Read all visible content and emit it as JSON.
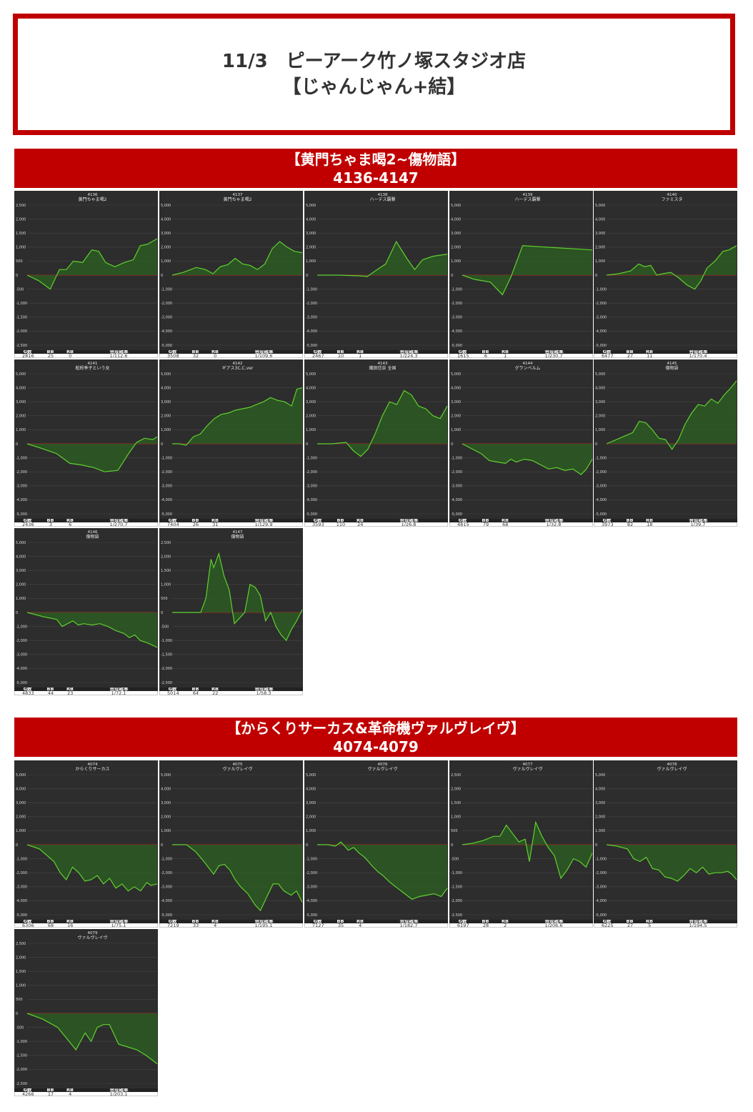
{
  "header": {
    "line1": "11/3　ピーアーク竹ノ塚スタジオ店",
    "line2": "【じゃんじゃん+結】"
  },
  "sections": [
    {
      "title": "【黄門ちゃま喝2~傷物語】",
      "range": "4136-4147"
    },
    {
      "title": "【からくりサーカス&革命機ヴァルヴレイヴ】",
      "range": "4074-4079"
    }
  ],
  "table_headers": [
    "G数",
    "BB",
    "RB",
    "合成確率"
  ],
  "colors": {
    "line": "#5fd130",
    "fill": "#2d5a22",
    "zero": "#cc2222",
    "bg": "#2d2d2d",
    "accent": "#c00000"
  },
  "chart_data": [
    {
      "type": "area",
      "number": "4136",
      "name": "黄門ちゃま喝2",
      "ylim": [
        -2500,
        2500
      ],
      "yticks": [
        2500,
        2000,
        1500,
        1000,
        500,
        0,
        -500,
        -1000,
        -1500,
        -2000,
        -2500
      ],
      "x": [
        0,
        250,
        500,
        700,
        850,
        1000,
        1200,
        1400,
        1550,
        1700,
        1900,
        2100,
        2300,
        2450,
        2600,
        2816
      ],
      "y": [
        0,
        -200,
        -500,
        200,
        200,
        500,
        450,
        900,
        850,
        450,
        300,
        450,
        550,
        1050,
        1100,
        1300
      ],
      "stats": {
        "games": "2816",
        "bb": "25",
        "rb": "0",
        "rate": "1/112.6"
      }
    },
    {
      "type": "area",
      "number": "4137",
      "name": "黄門ちゃま喝2",
      "ylim": [
        -5000,
        5000
      ],
      "yticks": [
        5000,
        4000,
        3000,
        2000,
        1000,
        0,
        -1000,
        -2000,
        -3000,
        -4000,
        -5000
      ],
      "x": [
        0,
        300,
        650,
        900,
        1100,
        1300,
        1500,
        1700,
        1900,
        2100,
        2300,
        2500,
        2700,
        2900,
        3100,
        3300,
        3508
      ],
      "y": [
        0,
        200,
        550,
        400,
        100,
        600,
        750,
        1200,
        800,
        700,
        400,
        800,
        1900,
        2400,
        2000,
        1700,
        1600
      ],
      "stats": {
        "games": "3508",
        "bb": "32",
        "rb": "0",
        "rate": "1/109.6"
      }
    },
    {
      "type": "area",
      "number": "4138",
      "name": "ハーデス覇撃",
      "ylim": [
        -5000,
        5000
      ],
      "yticks": [
        5000,
        4000,
        3000,
        2000,
        1000,
        0,
        -1000,
        -2000,
        -3000,
        -4000,
        -5000
      ],
      "x": [
        0,
        400,
        800,
        950,
        1100,
        1300,
        1500,
        1700,
        1850,
        2000,
        2200,
        2467
      ],
      "y": [
        0,
        0,
        -50,
        -100,
        300,
        800,
        2400,
        1200,
        400,
        1100,
        1350,
        1500
      ],
      "stats": {
        "games": "2467",
        "bb": "10",
        "rb": "1",
        "rate": "1/224.3"
      }
    },
    {
      "type": "area",
      "number": "4139",
      "name": "ハーデス覇撃",
      "ylim": [
        -5000,
        5000
      ],
      "yticks": [
        5000,
        4000,
        3000,
        2000,
        1000,
        0,
        -1000,
        -2000,
        -3000,
        -4000,
        -5000
      ],
      "x": [
        0,
        150,
        350,
        500,
        600,
        750,
        1615
      ],
      "y": [
        0,
        -300,
        -500,
        -1400,
        -200,
        2100,
        1800
      ],
      "stats": {
        "games": "1615",
        "bb": "6",
        "rb": "1",
        "rate": "1/230.7"
      }
    },
    {
      "type": "area",
      "number": "4140",
      "name": "ファミスタ",
      "ylim": [
        -5000,
        5000
      ],
      "yticks": [
        5000,
        4000,
        3000,
        2000,
        1000,
        0,
        -1000,
        -2000,
        -3000,
        -4000,
        -5000
      ],
      "x": [
        0,
        600,
        1200,
        1600,
        1900,
        2200,
        2500,
        2800,
        3200,
        3600,
        4000,
        4400,
        4700,
        5000,
        5400,
        5800,
        6100,
        6477
      ],
      "y": [
        0,
        100,
        300,
        800,
        600,
        700,
        0,
        100,
        200,
        -200,
        -700,
        -1000,
        -400,
        500,
        1000,
        1700,
        1800,
        2100
      ],
      "stats": {
        "games": "6477",
        "bb": "27",
        "rb": "11",
        "rate": "1/170.4"
      }
    },
    {
      "type": "area",
      "number": "4141",
      "name": "蚯蚓季子という女",
      "ylim": [
        -5000,
        5000
      ],
      "yticks": [
        5000,
        4000,
        3000,
        2000,
        1000,
        0,
        -1000,
        -2000,
        -3000,
        -4000,
        -5000
      ],
      "x": [
        0,
        250,
        550,
        800,
        1000,
        1250,
        1450,
        1700,
        1900,
        2050,
        2200,
        2350,
        2436
      ],
      "y": [
        0,
        -300,
        -700,
        -1400,
        -1500,
        -1700,
        -2000,
        -1900,
        -700,
        100,
        400,
        300,
        500
      ],
      "stats": {
        "games": "2436",
        "bb": "3",
        "rb": "6",
        "rate": "1/270.7"
      }
    },
    {
      "type": "area",
      "number": "4142",
      "name": "ギアス3C.C.ver",
      "ylim": [
        -5000,
        5000
      ],
      "yticks": [
        5000,
        4000,
        3000,
        2000,
        1000,
        0,
        -1000,
        -2000,
        -3000,
        -4000,
        -5000
      ],
      "x": [
        0,
        400,
        800,
        1200,
        1600,
        2000,
        2400,
        2800,
        3200,
        3600,
        4000,
        4400,
        4800,
        5200,
        5600,
        6000,
        6400,
        6800,
        7100,
        7404
      ],
      "y": [
        0,
        0,
        -100,
        500,
        700,
        1300,
        1800,
        2100,
        2200,
        2400,
        2500,
        2600,
        2800,
        3000,
        3300,
        3100,
        3000,
        2700,
        3900,
        4000
      ],
      "stats": {
        "games": "7404",
        "bb": "26",
        "rb": "31",
        "rate": "1/129.9"
      }
    },
    {
      "type": "area",
      "number": "4143",
      "name": "織田信奈 全国",
      "ylim": [
        -5000,
        5000
      ],
      "yticks": [
        5000,
        4000,
        3000,
        2000,
        1000,
        0,
        -1000,
        -2000,
        -3000,
        -4000,
        -5000
      ],
      "x": [
        0,
        400,
        800,
        1000,
        1200,
        1400,
        1600,
        1800,
        2000,
        2200,
        2400,
        2600,
        2800,
        3000,
        3200,
        3400,
        3593
      ],
      "y": [
        0,
        0,
        100,
        -500,
        -900,
        -400,
        700,
        2000,
        3000,
        2800,
        3800,
        3500,
        2700,
        2500,
        2000,
        1800,
        2700
      ],
      "stats": {
        "games": "3593",
        "bb": "110",
        "rb": "24",
        "rate": "1/26.8"
      }
    },
    {
      "type": "area",
      "number": "4144",
      "name": "グランベルム",
      "ylim": [
        -5000,
        5000
      ],
      "yticks": [
        5000,
        4000,
        3000,
        2000,
        1000,
        0,
        -1000,
        -2000,
        -3000,
        -4000,
        -5000
      ],
      "x": [
        0,
        300,
        700,
        1000,
        1300,
        1600,
        1800,
        2000,
        2300,
        2600,
        2900,
        3200,
        3500,
        3800,
        4100,
        4400,
        4600,
        4815
      ],
      "y": [
        0,
        -300,
        -700,
        -1200,
        -1300,
        -1400,
        -1100,
        -1300,
        -1100,
        -1200,
        -1500,
        -1800,
        -1700,
        -1900,
        -1800,
        -2200,
        -1800,
        -1100
      ],
      "stats": {
        "games": "4815",
        "bb": "79",
        "rb": "68",
        "rate": "1/32.8"
      }
    },
    {
      "type": "area",
      "number": "4145",
      "name": "傷物語",
      "ylim": [
        -5000,
        5000
      ],
      "yticks": [
        5000,
        4000,
        3000,
        2000,
        1000,
        0,
        -1000,
        -2000,
        -3000,
        -4000,
        -5000
      ],
      "x": [
        0,
        400,
        800,
        1000,
        1200,
        1400,
        1600,
        1800,
        2000,
        2200,
        2400,
        2600,
        2800,
        3000,
        3200,
        3400,
        3600,
        3800,
        3973
      ],
      "y": [
        0,
        400,
        800,
        1600,
        1500,
        1000,
        400,
        300,
        -400,
        300,
        1400,
        2200,
        2800,
        2700,
        3200,
        2900,
        3500,
        4000,
        4500
      ],
      "stats": {
        "games": "3973",
        "bb": "82",
        "rb": "18",
        "rate": "1/39.7"
      }
    },
    {
      "type": "area",
      "number": "4146",
      "name": "傷物語",
      "ylim": [
        -5000,
        5000
      ],
      "yticks": [
        5000,
        4000,
        3000,
        2000,
        1000,
        0,
        -1000,
        -2000,
        -3000,
        -4000,
        -5000
      ],
      "x": [
        0,
        600,
        1100,
        1300,
        1500,
        1700,
        1900,
        2100,
        2400,
        2700,
        3000,
        3300,
        3600,
        3800,
        4000,
        4200,
        4500,
        4833
      ],
      "y": [
        0,
        -300,
        -500,
        -1000,
        -800,
        -600,
        -900,
        -800,
        -900,
        -800,
        -1000,
        -1300,
        -1500,
        -1800,
        -1600,
        -2000,
        -2200,
        -2500
      ],
      "stats": {
        "games": "4833",
        "bb": "44",
        "rb": "23",
        "rate": "1/72.1"
      }
    },
    {
      "type": "area",
      "number": "4147",
      "name": "傷物語",
      "ylim": [
        -2500,
        2500
      ],
      "yticks": [
        2500,
        2000,
        1500,
        1000,
        500,
        0,
        -500,
        -1000,
        -1500,
        -2000,
        -2500
      ],
      "x": [
        0,
        1100,
        1300,
        1500,
        1600,
        1800,
        2000,
        2200,
        2400,
        2600,
        2800,
        3000,
        3200,
        3400,
        3600,
        3800,
        4000,
        4200,
        4400,
        4600,
        4800,
        5014
      ],
      "y": [
        0,
        0,
        500,
        1900,
        1600,
        2100,
        1300,
        800,
        -400,
        -200,
        0,
        1000,
        900,
        600,
        -300,
        0,
        -500,
        -800,
        -1000,
        -600,
        -300,
        100
      ],
      "stats": {
        "games": "5014",
        "bb": "64",
        "rb": "22",
        "rate": "1/58.3"
      }
    },
    {
      "type": "area",
      "number": "4074",
      "name": "からくりサーカス",
      "ylim": [
        -5000,
        5000
      ],
      "yticks": [
        5000,
        4000,
        3000,
        2000,
        1000,
        0,
        -1000,
        -2000,
        -3000,
        -4000,
        -5000
      ],
      "x": [
        0,
        600,
        1300,
        1600,
        1900,
        2200,
        2500,
        2800,
        3100,
        3400,
        3700,
        4000,
        4300,
        4600,
        4900,
        5200,
        5500,
        5800,
        6000,
        6306
      ],
      "y": [
        0,
        -300,
        -1200,
        -2000,
        -2500,
        -1600,
        -2000,
        -2600,
        -2500,
        -2200,
        -2800,
        -2400,
        -3100,
        -2800,
        -3300,
        -3000,
        -3300,
        -2700,
        -2900,
        -2800
      ],
      "stats": {
        "games": "6306",
        "bb": "68",
        "rb": "16",
        "rate": "1/75.1"
      }
    },
    {
      "type": "area",
      "number": "4075",
      "name": "ヴァルヴレイヴ",
      "ylim": [
        -5000,
        5000
      ],
      "yticks": [
        5000,
        4000,
        3000,
        2000,
        1000,
        0,
        -1000,
        -2000,
        -3000,
        -4000,
        -5000
      ],
      "x": [
        0,
        800,
        1300,
        1700,
        2000,
        2300,
        2600,
        2900,
        3200,
        3500,
        3800,
        4200,
        4600,
        4900,
        5300,
        5600,
        5900,
        6200,
        6600,
        6900,
        7219
      ],
      "y": [
        0,
        0,
        -500,
        -1100,
        -1600,
        -2100,
        -1500,
        -1400,
        -1800,
        -2500,
        -3000,
        -3500,
        -4300,
        -4700,
        -3600,
        -2800,
        -2800,
        -3300,
        -3600,
        -3300,
        -4100
      ],
      "stats": {
        "games": "7219",
        "bb": "33",
        "rb": "4",
        "rate": "1/195.1"
      }
    },
    {
      "type": "area",
      "number": "4076",
      "name": "ヴァルヴレイヴ",
      "ylim": [
        -5000,
        5000
      ],
      "yticks": [
        5000,
        4000,
        3000,
        2000,
        1000,
        0,
        -1000,
        -2000,
        -3000,
        -4000,
        -5000
      ],
      "x": [
        0,
        600,
        1000,
        1300,
        1700,
        2000,
        2300,
        2600,
        3000,
        3300,
        3600,
        4000,
        4400,
        4800,
        5200,
        5600,
        6000,
        6400,
        6800,
        7127
      ],
      "y": [
        0,
        0,
        -100,
        200,
        -400,
        -200,
        -600,
        -900,
        -1500,
        -1900,
        -2200,
        -2700,
        -3100,
        -3500,
        -3900,
        -3700,
        -3600,
        -3500,
        -3700,
        -3100
      ],
      "stats": {
        "games": "7127",
        "bb": "35",
        "rb": "4",
        "rate": "1/182.7"
      }
    },
    {
      "type": "area",
      "number": "4077",
      "name": "ヴァルヴレイヴ",
      "ylim": [
        -2500,
        2500
      ],
      "yticks": [
        2500,
        2000,
        1500,
        1000,
        500,
        0,
        -500,
        -1000,
        -1500,
        -2000,
        -2500
      ],
      "x": [
        0,
        500,
        1000,
        1500,
        1800,
        2100,
        2400,
        2700,
        3000,
        3200,
        3500,
        3800,
        4100,
        4400,
        4700,
        5000,
        5300,
        5600,
        5900,
        6197
      ],
      "y": [
        0,
        50,
        150,
        300,
        300,
        700,
        400,
        100,
        200,
        -600,
        800,
        300,
        -100,
        -400,
        -1200,
        -900,
        -500,
        -600,
        -800,
        -300
      ],
      "stats": {
        "games": "6197",
        "bb": "28",
        "rb": "2",
        "rate": "1/206.6"
      }
    },
    {
      "type": "area",
      "number": "4078",
      "name": "ヴァルヴレイヴ",
      "ylim": [
        -5000,
        5000
      ],
      "yticks": [
        5000,
        4000,
        3000,
        2000,
        1000,
        0,
        -1000,
        -2000,
        -3000,
        -4000,
        -5000
      ],
      "x": [
        0,
        500,
        1000,
        1300,
        1600,
        1900,
        2200,
        2500,
        2800,
        3100,
        3400,
        3700,
        4000,
        4300,
        4600,
        4900,
        5200,
        5500,
        5800,
        6000,
        6225
      ],
      "y": [
        0,
        -100,
        -300,
        -1000,
        -1200,
        -900,
        -1700,
        -1800,
        -2300,
        -2400,
        -2600,
        -2200,
        -1700,
        -2000,
        -1600,
        -2100,
        -2000,
        -2000,
        -1900,
        -2100,
        -2500
      ],
      "stats": {
        "games": "6225",
        "bb": "27",
        "rb": "5",
        "rate": "1/194.5"
      }
    },
    {
      "type": "area",
      "number": "4079",
      "name": "ヴァルヴレイヴ",
      "ylim": [
        -2500,
        2500
      ],
      "yticks": [
        2500,
        2000,
        1500,
        1000,
        500,
        0,
        -500,
        -1000,
        -1500,
        -2000,
        -2500
      ],
      "x": [
        0,
        500,
        1000,
        1300,
        1600,
        1900,
        2100,
        2300,
        2500,
        2700,
        3000,
        3300,
        3600,
        3900,
        4266
      ],
      "y": [
        0,
        -200,
        -500,
        -900,
        -1300,
        -700,
        -1000,
        -500,
        -400,
        -400,
        -1100,
        -1200,
        -1300,
        -1500,
        -1800
      ],
      "stats": {
        "games": "4266",
        "bb": "17",
        "rb": "4",
        "rate": "1/203.1"
      }
    }
  ]
}
